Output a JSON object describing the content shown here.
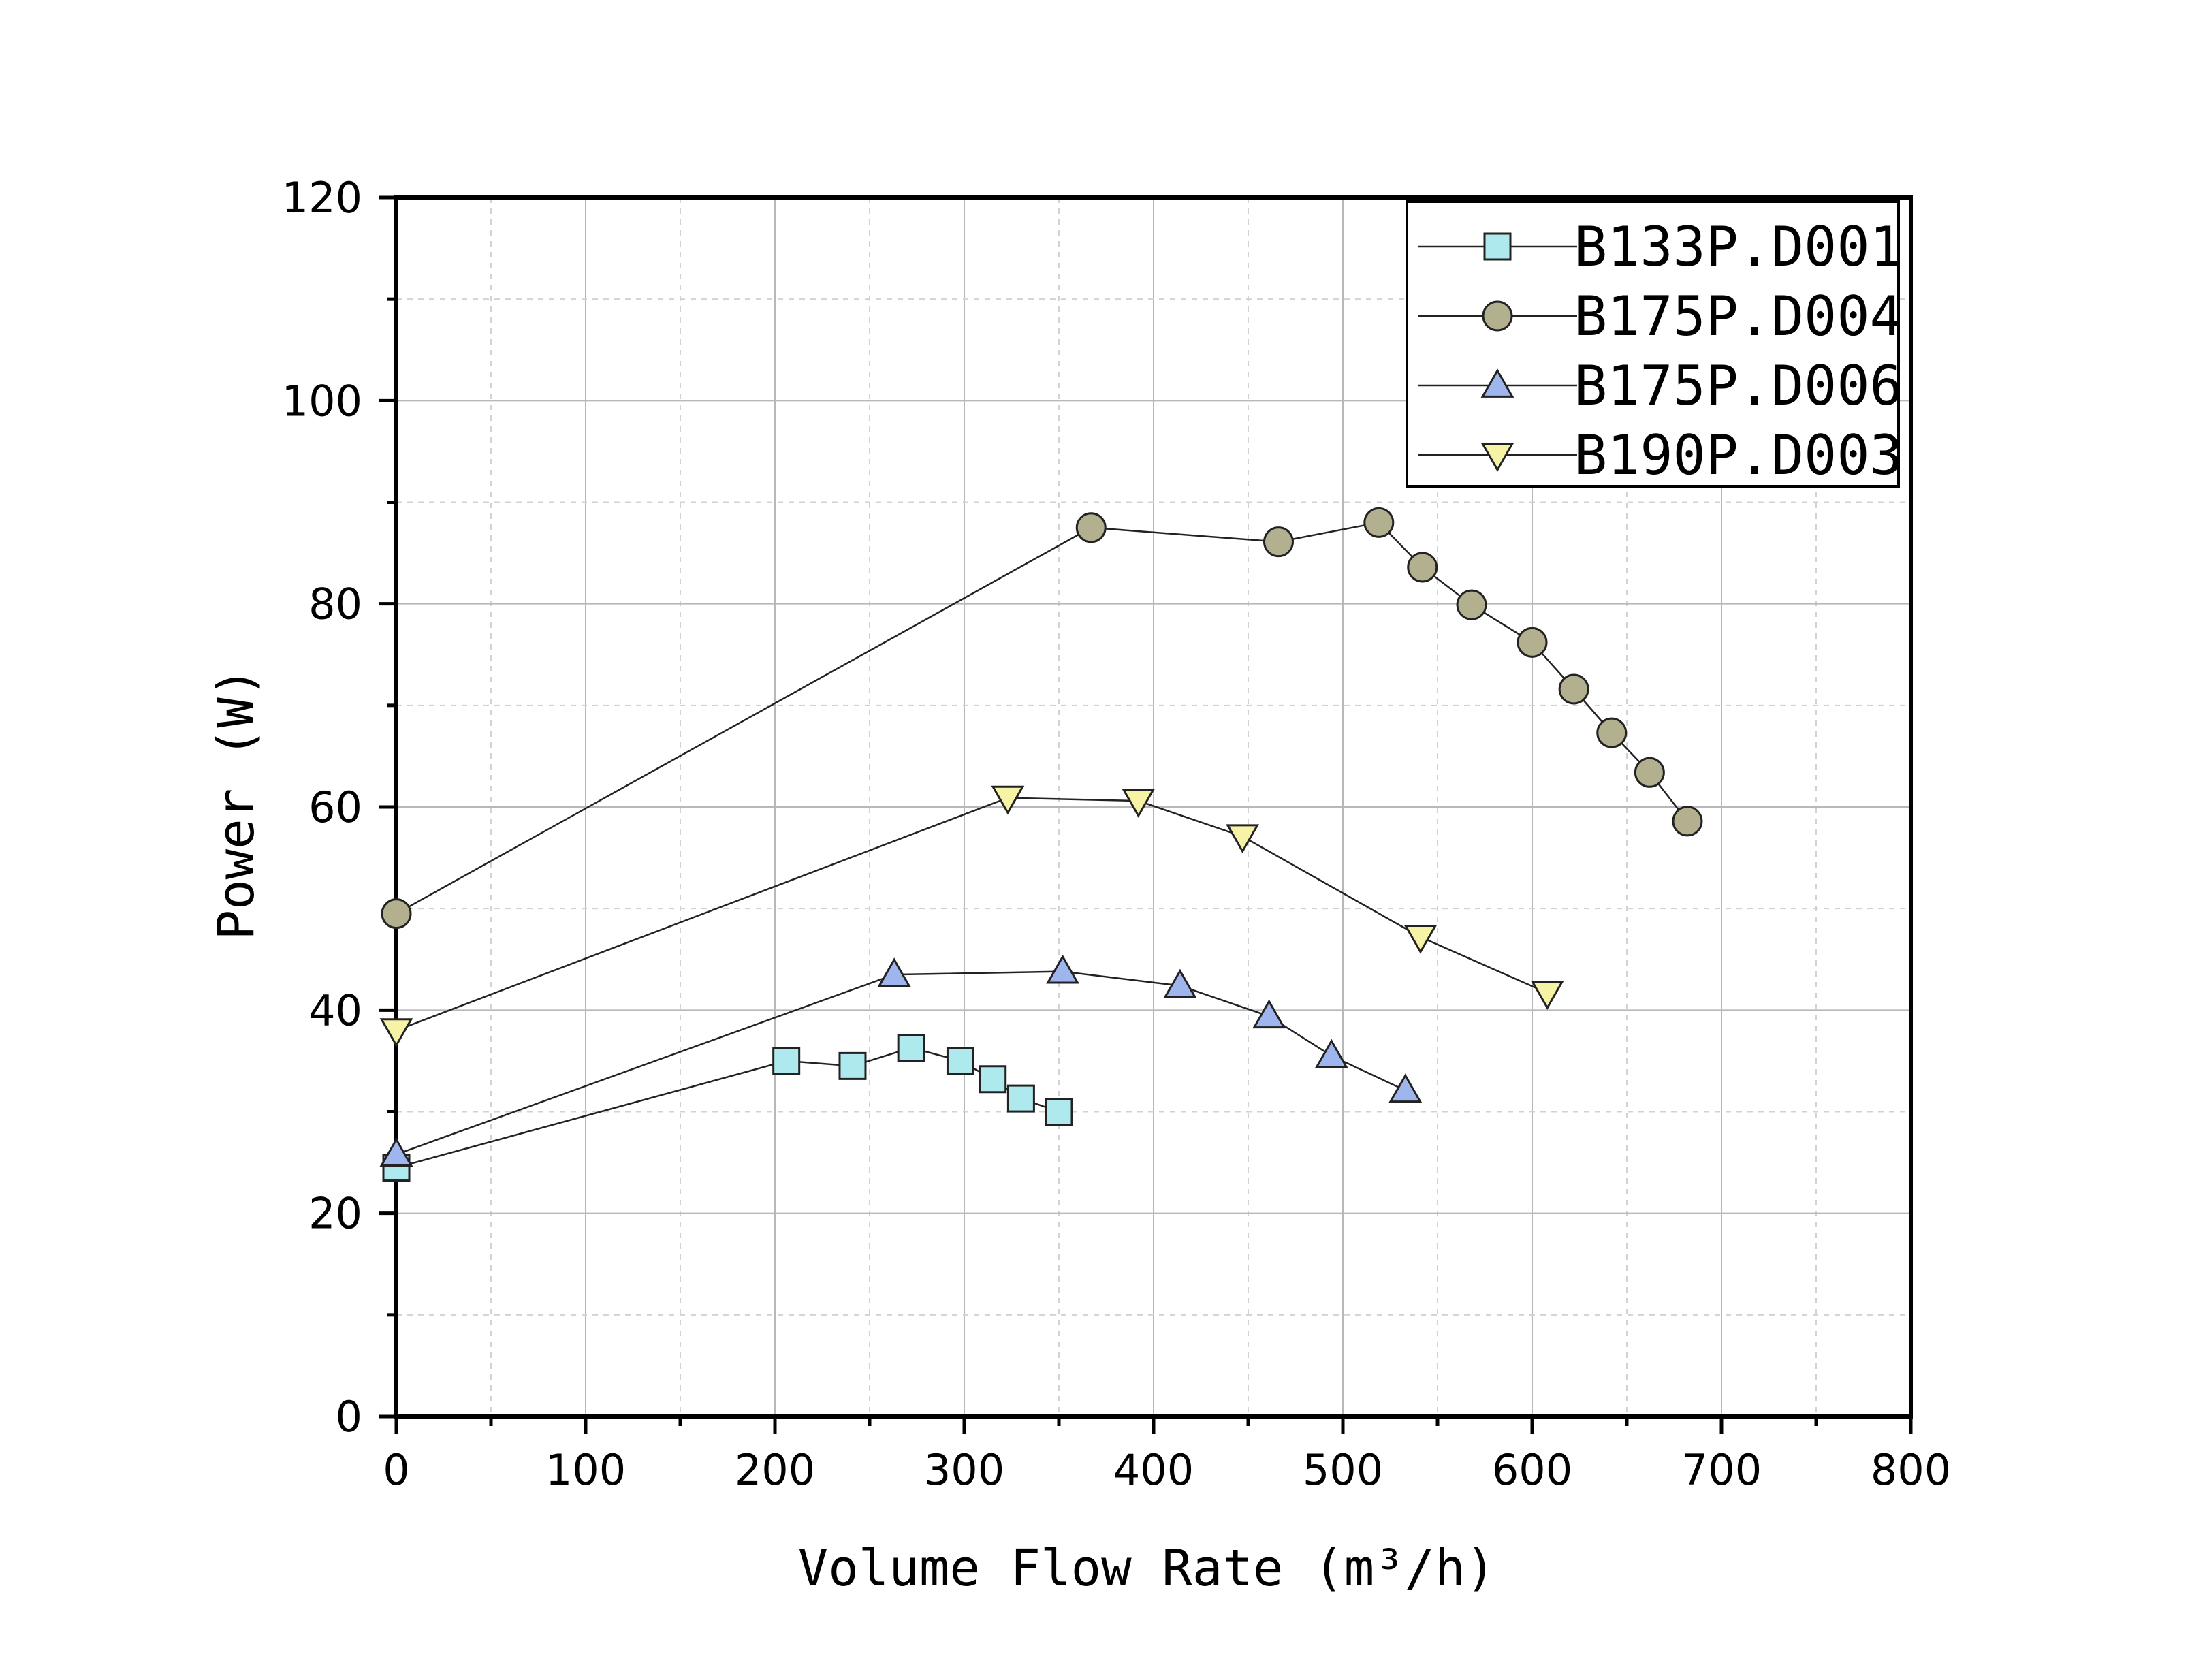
{
  "chart_data": {
    "type": "line",
    "title": "",
    "xlabel": "Volume Flow Rate (m³/h)",
    "ylabel": "Power (W)",
    "xlim": [
      0,
      800
    ],
    "ylim": [
      0,
      120
    ],
    "x_ticks": [
      0,
      100,
      200,
      300,
      400,
      500,
      600,
      700,
      800
    ],
    "y_ticks": [
      0,
      20,
      40,
      60,
      80,
      100,
      120
    ],
    "grid": true,
    "legend_position": "top-right",
    "series": [
      {
        "name": "B133P.D001",
        "marker": "square",
        "color": "#aee9ee",
        "x": [
          0,
          206,
          241,
          272,
          298,
          315,
          330,
          350
        ],
        "y": [
          24.5,
          35.0,
          34.5,
          36.3,
          35.0,
          33.2,
          31.3,
          30.0
        ]
      },
      {
        "name": "B175P.D004",
        "marker": "circle",
        "color": "#b3b08f",
        "x": [
          0,
          367,
          466,
          519,
          542,
          568,
          600,
          622,
          642,
          662,
          682
        ],
        "y": [
          49.5,
          87.5,
          86.1,
          88.0,
          83.6,
          79.9,
          76.2,
          71.6,
          67.3,
          63.4,
          58.6
        ]
      },
      {
        "name": "B175P.D006",
        "marker": "triangle-up",
        "color": "#9fb5ee",
        "x": [
          0,
          263,
          352,
          414,
          461,
          494,
          533
        ],
        "y": [
          25.8,
          43.5,
          43.8,
          42.4,
          39.4,
          35.5,
          32.1
        ]
      },
      {
        "name": "B190P.D003",
        "marker": "triangle-down",
        "color": "#f7f3a6",
        "x": [
          0,
          323,
          392,
          447,
          541,
          608
        ],
        "y": [
          38.0,
          60.9,
          60.6,
          57.1,
          47.2,
          41.7
        ]
      }
    ]
  }
}
